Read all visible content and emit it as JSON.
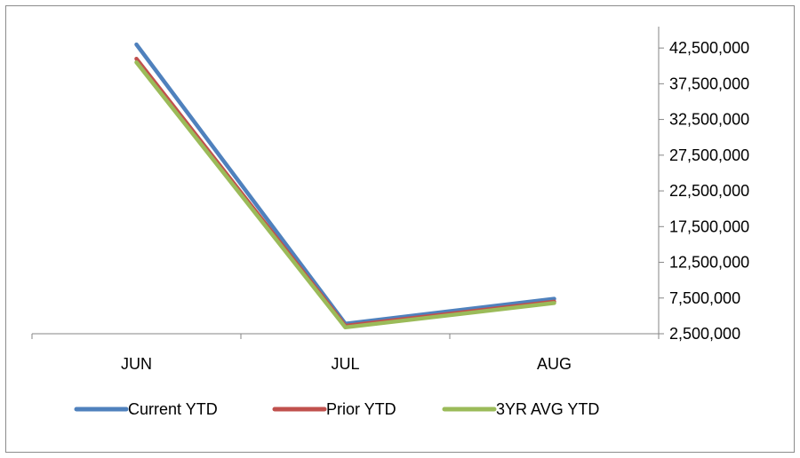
{
  "chart_data": {
    "type": "line",
    "title": "",
    "xlabel": "",
    "ylabel": "",
    "categories": [
      "JUN",
      "JUL",
      "AUG"
    ],
    "ylim": [
      2500000,
      45000000
    ],
    "y_ticks": [
      "42,500,000",
      "37,500,000",
      "32,500,000",
      "27,500,000",
      "22,500,000",
      "17,500,000",
      "12,500,000",
      "7,500,000",
      "2,500,000"
    ],
    "y_tick_values": [
      42500000,
      37500000,
      32500000,
      27500000,
      22500000,
      17500000,
      12500000,
      7500000,
      2500000
    ],
    "y_axis_position": "right",
    "grid": false,
    "legend_position": "bottom",
    "series": [
      {
        "name": "Current YTD",
        "values": [
          43000000,
          3900000,
          7400000
        ],
        "color": "#4f81bd"
      },
      {
        "name": "Prior YTD",
        "values": [
          41000000,
          3600000,
          7000000
        ],
        "color": "#c0504d"
      },
      {
        "name": "3YR AVG YTD",
        "values": [
          40500000,
          3400000,
          6800000
        ],
        "color": "#9bbb59"
      }
    ]
  }
}
